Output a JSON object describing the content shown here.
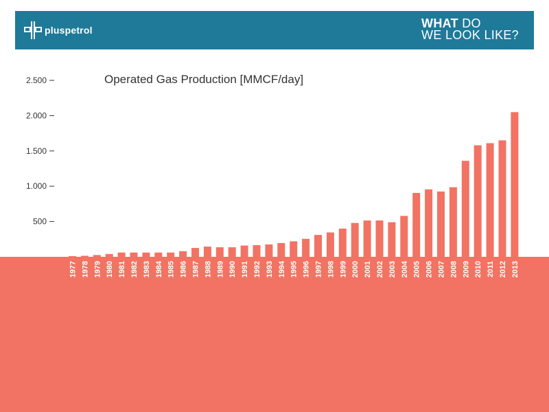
{
  "header": {
    "logo_text": "pluspetrol",
    "tagline_bold": "WHAT",
    "tagline_rest_1": " DO",
    "tagline_2": "WE LOOK LIKE?"
  },
  "colors": {
    "header_bg": "#1e7a98",
    "bar": "#f27363",
    "band": "#f27363",
    "axis_text": "#333333"
  },
  "chart_data": {
    "type": "bar",
    "title": "Operated Gas Production [MMCF/day]",
    "xlabel": "",
    "ylabel": "",
    "ylim": [
      0,
      2500
    ],
    "yticks": [
      500,
      1000,
      1500,
      2000,
      2500
    ],
    "ytick_labels": [
      "500",
      "1.000",
      "1.500",
      "2.000",
      "2.500"
    ],
    "categories": [
      "1977",
      "1978",
      "1979",
      "1980",
      "1981",
      "1982",
      "1983",
      "1984",
      "1985",
      "1986",
      "1987",
      "1988",
      "1989",
      "1990",
      "1991",
      "1992",
      "1993",
      "1994",
      "1995",
      "1996",
      "1997",
      "1998",
      "1999",
      "2000",
      "2001",
      "2002",
      "2003",
      "2004",
      "2005",
      "2006",
      "2007",
      "2008",
      "2009",
      "2010",
      "2011",
      "2012",
      "2013"
    ],
    "values": [
      10,
      15,
      25,
      40,
      60,
      60,
      60,
      60,
      60,
      80,
      125,
      145,
      135,
      135,
      160,
      165,
      175,
      195,
      220,
      255,
      310,
      345,
      400,
      480,
      515,
      515,
      490,
      580,
      905,
      955,
      925,
      985,
      1360,
      1580,
      1610,
      1650,
      2050
    ],
    "grid": false,
    "legend": "none"
  }
}
